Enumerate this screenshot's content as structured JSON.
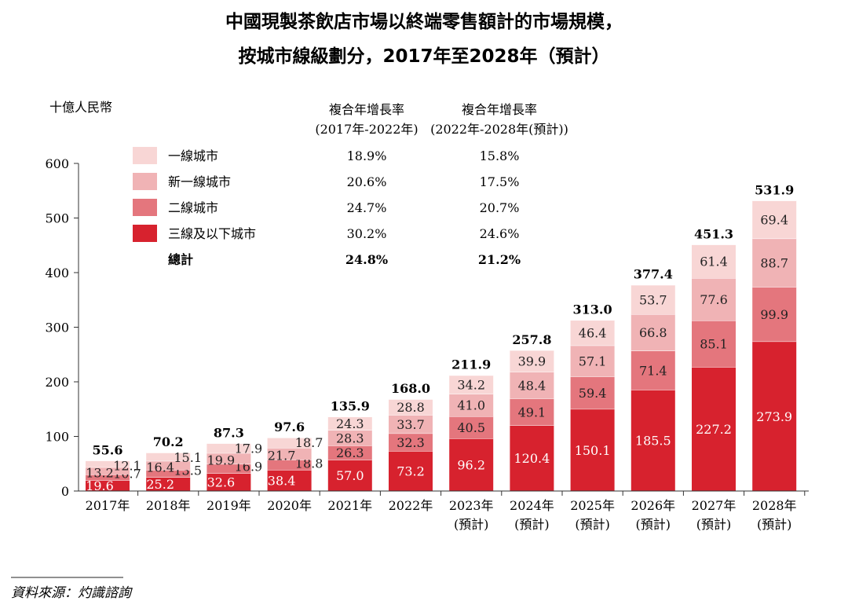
{
  "chart_data": {
    "type": "bar",
    "stacked": true,
    "title_line1": "中國現製茶飲店市場以終端零售額計的市場規模，",
    "title_line2": "按城市線級劃分，2017年至2028年（預計）",
    "ylabel": "十億人民幣",
    "ylim": [
      0,
      600
    ],
    "yticks": [
      "0",
      "100",
      "200",
      "300",
      "400",
      "500",
      "600"
    ],
    "categories": [
      "2017年",
      "2018年",
      "2019年",
      "2020年",
      "2021年",
      "2022年",
      "2023年",
      "2024年",
      "2025年",
      "2026年",
      "2027年",
      "2028年"
    ],
    "category_sublabels": [
      "",
      "",
      "",
      "",
      "",
      "",
      "(預計)",
      "(預計)",
      "(預計)",
      "(預計)",
      "(預計)",
      "(預計)"
    ],
    "series": [
      {
        "name": "三線及以下城市",
        "color": "#d7222e",
        "cagr_1": "30.2%",
        "cagr_2": "24.6%",
        "values": [
          19.6,
          25.2,
          32.6,
          38.4,
          57.0,
          73.2,
          96.2,
          120.4,
          150.1,
          185.5,
          227.2,
          273.9
        ],
        "labels": [
          "19.6",
          "25.2",
          "32.6",
          "38.4",
          "57.0",
          "73.2",
          "96.2",
          "120.4",
          "150.1",
          "185.5",
          "227.2",
          "273.9"
        ]
      },
      {
        "name": "二線城市",
        "color": "#e4767d",
        "cagr_1": "24.7%",
        "cagr_2": "20.7%",
        "values": [
          10.7,
          13.5,
          16.9,
          18.8,
          26.3,
          32.3,
          40.5,
          49.1,
          59.4,
          71.4,
          85.1,
          99.9
        ],
        "labels": [
          "10.7",
          "13.5",
          "16.9",
          "18.8",
          "26.3",
          "32.3",
          "40.5",
          "49.1",
          "59.4",
          "71.4",
          "85.1",
          "99.9"
        ]
      },
      {
        "name": "新一線城市",
        "color": "#f0b3b5",
        "cagr_1": "20.6%",
        "cagr_2": "17.5%",
        "values": [
          13.2,
          16.4,
          19.9,
          21.7,
          28.3,
          33.7,
          41.0,
          48.4,
          57.1,
          66.8,
          77.6,
          88.7
        ],
        "labels": [
          "13.2",
          "16.4",
          "19.9",
          "21.7",
          "28.3",
          "33.7",
          "41.0",
          "48.4",
          "57.1",
          "66.8",
          "77.6",
          "88.7"
        ]
      },
      {
        "name": "一線城市",
        "color": "#f8d6d5",
        "cagr_1": "18.9%",
        "cagr_2": "15.8%",
        "values": [
          12.1,
          15.1,
          17.9,
          18.7,
          24.3,
          28.8,
          34.2,
          39.9,
          46.4,
          53.7,
          61.4,
          69.4
        ],
        "labels": [
          "12.1",
          "15.1",
          "17.9",
          "18.7",
          "24.3",
          "28.8",
          "34.2",
          "39.9",
          "46.4",
          "53.7",
          "61.4",
          "69.4"
        ]
      }
    ],
    "totals": [
      55.6,
      70.2,
      87.3,
      97.6,
      135.9,
      168.0,
      211.9,
      257.8,
      313.0,
      377.4,
      451.3,
      531.9
    ],
    "total_labels": [
      "55.6",
      "70.2",
      "87.3",
      "97.6",
      "135.9",
      "168.0",
      "211.9",
      "257.8",
      "313.0",
      "377.4",
      "451.3",
      "531.9"
    ],
    "legend": {
      "cagr_header_1": [
        "複合年增長率",
        "(2017年-2022年)"
      ],
      "cagr_header_2": [
        "複合年增長率",
        "(2022年-2028年(預計))"
      ],
      "total_row": {
        "name": "總計",
        "cagr_1": "24.8%",
        "cagr_2": "21.2%"
      }
    },
    "source": "資料來源：灼識諮詢"
  }
}
